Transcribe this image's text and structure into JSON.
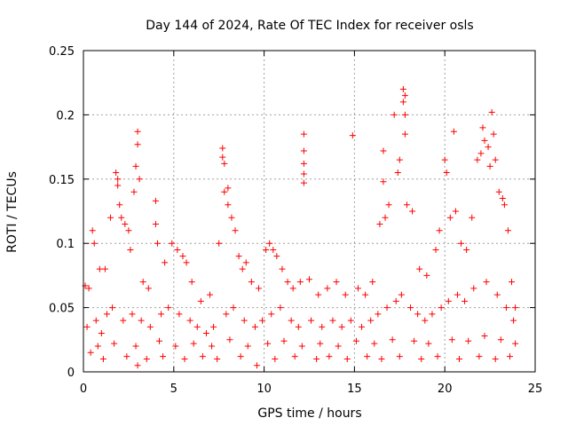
{
  "chart_data": {
    "type": "scatter",
    "title": "Day 144 of 2024, Rate Of TEC Index for receiver osls",
    "xlabel": "GPS time / hours",
    "ylabel": "ROTI / TECUs",
    "xlim": [
      0,
      25
    ],
    "ylim": [
      0,
      0.25
    ],
    "xticks": [
      0,
      5,
      10,
      15,
      20,
      25
    ],
    "xtick_labels": [
      "0",
      "5",
      "10",
      "15",
      "20",
      "25"
    ],
    "yticks": [
      0,
      0.05,
      0.1,
      0.15,
      0.2,
      0.25
    ],
    "ytick_labels": [
      "0",
      "0.05",
      "0.1",
      "0.15",
      "0.2",
      "0.25"
    ],
    "grid": true,
    "marker": "plus",
    "color": "#ff0000",
    "series": [
      {
        "name": "ROTI",
        "points": [
          [
            0.1,
            0.067
          ],
          [
            0.3,
            0.065
          ],
          [
            0.5,
            0.11
          ],
          [
            0.6,
            0.1
          ],
          [
            0.9,
            0.08
          ],
          [
            1.2,
            0.08
          ],
          [
            1.5,
            0.12
          ],
          [
            1.8,
            0.155
          ],
          [
            1.9,
            0.15
          ],
          [
            1.9,
            0.145
          ],
          [
            2.0,
            0.13
          ],
          [
            2.1,
            0.12
          ],
          [
            2.3,
            0.115
          ],
          [
            2.5,
            0.11
          ],
          [
            2.6,
            0.095
          ],
          [
            2.8,
            0.14
          ],
          [
            2.9,
            0.16
          ],
          [
            3.0,
            0.187
          ],
          [
            3.0,
            0.177
          ],
          [
            3.1,
            0.15
          ],
          [
            3.3,
            0.07
          ],
          [
            3.6,
            0.065
          ],
          [
            4.0,
            0.115
          ],
          [
            4.0,
            0.133
          ],
          [
            4.1,
            0.1
          ],
          [
            4.5,
            0.085
          ],
          [
            4.9,
            0.1
          ],
          [
            5.2,
            0.095
          ],
          [
            5.5,
            0.09
          ],
          [
            5.7,
            0.085
          ],
          [
            6.0,
            0.07
          ],
          [
            6.5,
            0.055
          ],
          [
            7.0,
            0.06
          ],
          [
            7.5,
            0.1
          ],
          [
            7.7,
            0.174
          ],
          [
            7.7,
            0.167
          ],
          [
            7.8,
            0.162
          ],
          [
            7.8,
            0.14
          ],
          [
            8.0,
            0.143
          ],
          [
            8.0,
            0.13
          ],
          [
            8.2,
            0.12
          ],
          [
            8.4,
            0.11
          ],
          [
            8.6,
            0.09
          ],
          [
            8.8,
            0.08
          ],
          [
            9.0,
            0.085
          ],
          [
            9.3,
            0.07
          ],
          [
            9.7,
            0.065
          ],
          [
            10.1,
            0.095
          ],
          [
            10.3,
            0.1
          ],
          [
            10.5,
            0.095
          ],
          [
            10.7,
            0.09
          ],
          [
            11.0,
            0.08
          ],
          [
            11.3,
            0.07
          ],
          [
            11.6,
            0.065
          ],
          [
            12.0,
            0.07
          ],
          [
            12.2,
            0.185
          ],
          [
            12.2,
            0.172
          ],
          [
            12.2,
            0.162
          ],
          [
            12.2,
            0.154
          ],
          [
            12.2,
            0.147
          ],
          [
            12.5,
            0.072
          ],
          [
            13.0,
            0.06
          ],
          [
            13.5,
            0.065
          ],
          [
            14.0,
            0.07
          ],
          [
            14.5,
            0.06
          ],
          [
            14.9,
            0.184
          ],
          [
            15.2,
            0.065
          ],
          [
            15.6,
            0.06
          ],
          [
            16.0,
            0.07
          ],
          [
            16.4,
            0.115
          ],
          [
            16.6,
            0.148
          ],
          [
            16.6,
            0.172
          ],
          [
            16.7,
            0.12
          ],
          [
            16.9,
            0.13
          ],
          [
            17.2,
            0.2
          ],
          [
            17.4,
            0.155
          ],
          [
            17.5,
            0.165
          ],
          [
            17.7,
            0.22
          ],
          [
            17.7,
            0.21
          ],
          [
            17.8,
            0.215
          ],
          [
            17.8,
            0.185
          ],
          [
            17.8,
            0.2
          ],
          [
            17.9,
            0.13
          ],
          [
            18.2,
            0.125
          ],
          [
            18.6,
            0.08
          ],
          [
            19.0,
            0.075
          ],
          [
            19.5,
            0.095
          ],
          [
            19.7,
            0.11
          ],
          [
            20.0,
            0.165
          ],
          [
            20.1,
            0.155
          ],
          [
            20.3,
            0.12
          ],
          [
            20.5,
            0.187
          ],
          [
            20.6,
            0.125
          ],
          [
            20.9,
            0.1
          ],
          [
            21.2,
            0.095
          ],
          [
            21.5,
            0.12
          ],
          [
            21.8,
            0.165
          ],
          [
            22.0,
            0.17
          ],
          [
            22.1,
            0.19
          ],
          [
            22.2,
            0.18
          ],
          [
            22.4,
            0.175
          ],
          [
            22.5,
            0.16
          ],
          [
            22.6,
            0.202
          ],
          [
            22.7,
            0.185
          ],
          [
            22.8,
            0.165
          ],
          [
            23.0,
            0.14
          ],
          [
            23.2,
            0.135
          ],
          [
            23.3,
            0.13
          ],
          [
            23.5,
            0.11
          ],
          [
            23.7,
            0.07
          ],
          [
            23.9,
            0.05
          ],
          [
            0.2,
            0.035
          ],
          [
            0.7,
            0.04
          ],
          [
            1.0,
            0.03
          ],
          [
            1.3,
            0.045
          ],
          [
            1.6,
            0.05
          ],
          [
            2.2,
            0.04
          ],
          [
            2.7,
            0.045
          ],
          [
            3.2,
            0.04
          ],
          [
            3.7,
            0.035
          ],
          [
            4.3,
            0.045
          ],
          [
            4.7,
            0.05
          ],
          [
            5.3,
            0.045
          ],
          [
            5.9,
            0.04
          ],
          [
            6.3,
            0.035
          ],
          [
            6.8,
            0.03
          ],
          [
            7.2,
            0.035
          ],
          [
            7.9,
            0.045
          ],
          [
            8.3,
            0.05
          ],
          [
            8.9,
            0.04
          ],
          [
            9.5,
            0.035
          ],
          [
            9.9,
            0.04
          ],
          [
            10.4,
            0.045
          ],
          [
            10.9,
            0.05
          ],
          [
            11.5,
            0.04
          ],
          [
            11.9,
            0.035
          ],
          [
            12.6,
            0.04
          ],
          [
            13.2,
            0.035
          ],
          [
            13.8,
            0.04
          ],
          [
            14.3,
            0.035
          ],
          [
            14.8,
            0.04
          ],
          [
            15.4,
            0.035
          ],
          [
            15.9,
            0.04
          ],
          [
            16.3,
            0.045
          ],
          [
            16.8,
            0.05
          ],
          [
            17.3,
            0.055
          ],
          [
            17.6,
            0.06
          ],
          [
            18.1,
            0.05
          ],
          [
            18.5,
            0.045
          ],
          [
            18.9,
            0.04
          ],
          [
            19.3,
            0.045
          ],
          [
            19.8,
            0.05
          ],
          [
            20.2,
            0.055
          ],
          [
            20.7,
            0.06
          ],
          [
            21.1,
            0.055
          ],
          [
            21.6,
            0.065
          ],
          [
            22.3,
            0.07
          ],
          [
            22.9,
            0.06
          ],
          [
            23.4,
            0.05
          ],
          [
            23.8,
            0.04
          ],
          [
            0.4,
            0.015
          ],
          [
            1.1,
            0.01
          ],
          [
            2.4,
            0.012
          ],
          [
            3.0,
            0.005
          ],
          [
            3.5,
            0.01
          ],
          [
            4.4,
            0.012
          ],
          [
            5.6,
            0.01
          ],
          [
            6.6,
            0.012
          ],
          [
            7.4,
            0.01
          ],
          [
            8.7,
            0.012
          ],
          [
            9.6,
            0.005
          ],
          [
            10.6,
            0.01
          ],
          [
            11.7,
            0.012
          ],
          [
            12.9,
            0.01
          ],
          [
            13.6,
            0.012
          ],
          [
            14.6,
            0.01
          ],
          [
            15.7,
            0.012
          ],
          [
            16.5,
            0.01
          ],
          [
            17.5,
            0.012
          ],
          [
            18.7,
            0.01
          ],
          [
            19.6,
            0.012
          ],
          [
            20.8,
            0.01
          ],
          [
            21.9,
            0.012
          ],
          [
            22.8,
            0.01
          ],
          [
            23.6,
            0.012
          ],
          [
            0.8,
            0.02
          ],
          [
            1.7,
            0.022
          ],
          [
            2.9,
            0.02
          ],
          [
            4.2,
            0.024
          ],
          [
            5.1,
            0.02
          ],
          [
            6.1,
            0.022
          ],
          [
            7.1,
            0.02
          ],
          [
            8.1,
            0.025
          ],
          [
            9.1,
            0.02
          ],
          [
            10.2,
            0.022
          ],
          [
            11.1,
            0.024
          ],
          [
            12.1,
            0.02
          ],
          [
            13.1,
            0.022
          ],
          [
            14.1,
            0.02
          ],
          [
            15.1,
            0.024
          ],
          [
            16.1,
            0.022
          ],
          [
            17.1,
            0.025
          ],
          [
            18.3,
            0.024
          ],
          [
            19.1,
            0.022
          ],
          [
            20.4,
            0.025
          ],
          [
            21.3,
            0.024
          ],
          [
            22.2,
            0.028
          ],
          [
            23.1,
            0.025
          ],
          [
            23.9,
            0.022
          ]
        ]
      }
    ]
  }
}
